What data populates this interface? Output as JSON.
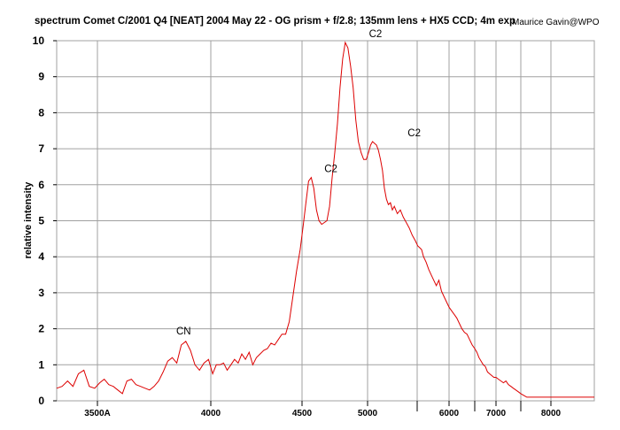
{
  "chart_data": {
    "type": "line",
    "title": "spectrum Comet C/2001 Q4 [NEAT] 2004 May 22 -  OG prism + f/2.8; 135mm lens + HX5 CCD; 4m exp",
    "credit": "Maurice Gavin@WPO",
    "ylabel": "relative intensity",
    "xlabel": "",
    "ylim": [
      0,
      10
    ],
    "yticks": [
      0,
      1,
      2,
      3,
      4,
      5,
      6,
      7,
      8,
      9,
      10
    ],
    "grid": true,
    "x_scale": "prism-dispersion",
    "x_ticks": [
      {
        "value": 3500,
        "label": "3500A"
      },
      {
        "value": 4000,
        "label": "4000"
      },
      {
        "value": 4500,
        "label": "4500"
      },
      {
        "value": 5000,
        "label": "5000"
      },
      {
        "value": 6000,
        "label": "6000"
      },
      {
        "value": 7000,
        "label": "7000"
      },
      {
        "value": 8000,
        "label": "8000"
      }
    ],
    "x_minor_ticks": [
      5500,
      6500,
      7500
    ],
    "xlim": [
      3350,
      9000
    ],
    "annotations": [
      {
        "text": "CN",
        "x": 3880,
        "y": 1.7
      },
      {
        "text": "C2",
        "x": 4720,
        "y": 6.2
      },
      {
        "text": "C2",
        "x": 5080,
        "y": 9.95
      },
      {
        "text": "C2",
        "x": 5470,
        "y": 7.2
      }
    ],
    "series": [
      {
        "color": "#dd0000",
        "x": [
          3350,
          3370,
          3390,
          3410,
          3430,
          3450,
          3470,
          3490,
          3510,
          3530,
          3550,
          3570,
          3590,
          3610,
          3630,
          3650,
          3670,
          3690,
          3710,
          3730,
          3750,
          3770,
          3790,
          3810,
          3830,
          3850,
          3870,
          3890,
          3910,
          3930,
          3950,
          3970,
          3990,
          4010,
          4030,
          4050,
          4070,
          4090,
          4110,
          4130,
          4150,
          4170,
          4190,
          4210,
          4230,
          4250,
          4270,
          4290,
          4310,
          4330,
          4350,
          4370,
          4390,
          4410,
          4430,
          4450,
          4470,
          4490,
          4510,
          4530,
          4550,
          4570,
          4590,
          4610,
          4630,
          4650,
          4670,
          4690,
          4710,
          4730,
          4750,
          4770,
          4790,
          4810,
          4830,
          4850,
          4870,
          4890,
          4910,
          4930,
          4950,
          4970,
          4990,
          5010,
          5030,
          5050,
          5070,
          5090,
          5110,
          5130,
          5150,
          5170,
          5190,
          5210,
          5230,
          5250,
          5270,
          5300,
          5330,
          5360,
          5390,
          5420,
          5450,
          5480,
          5510,
          5540,
          5570,
          5600,
          5640,
          5680,
          5720,
          5760,
          5800,
          5840,
          5880,
          5920,
          5960,
          6000,
          6050,
          6100,
          6150,
          6200,
          6250,
          6300,
          6350,
          6400,
          6450,
          6500,
          6550,
          6600,
          6650,
          6700,
          6750,
          6800,
          6850,
          6900,
          6950,
          7000,
          7050,
          7100,
          7150,
          7200,
          7250,
          7300,
          7350,
          7400,
          7450,
          7500,
          7550,
          7600,
          7650,
          7700,
          7750,
          7800,
          7850,
          7900,
          7950,
          8000,
          8050,
          8100,
          8150,
          8200,
          8250,
          8300,
          8350,
          8400,
          8450,
          8500,
          8550,
          8600,
          8650,
          8700,
          8750,
          8800,
          8850,
          8900,
          8950,
          9000
        ],
        "values": [
          0.35,
          0.4,
          0.55,
          0.4,
          0.75,
          0.85,
          0.4,
          0.35,
          0.5,
          0.6,
          0.45,
          0.4,
          0.3,
          0.2,
          0.55,
          0.6,
          0.45,
          0.4,
          0.35,
          0.3,
          0.4,
          0.55,
          0.8,
          1.1,
          1.2,
          1.05,
          1.55,
          1.65,
          1.4,
          1.0,
          0.85,
          1.05,
          1.15,
          0.75,
          1.0,
          1.0,
          1.05,
          0.85,
          1.0,
          1.15,
          1.05,
          1.3,
          1.15,
          1.35,
          1.0,
          1.2,
          1.3,
          1.4,
          1.45,
          1.6,
          1.55,
          1.7,
          1.85,
          1.85,
          2.2,
          2.9,
          3.6,
          4.2,
          4.9,
          5.5,
          6.1,
          6.2,
          5.9,
          5.3,
          5.0,
          4.9,
          4.95,
          5.0,
          5.4,
          6.2,
          6.9,
          7.7,
          8.7,
          9.5,
          9.95,
          9.8,
          9.3,
          8.7,
          7.8,
          7.2,
          6.9,
          6.7,
          6.7,
          6.9,
          7.1,
          7.2,
          7.15,
          7.1,
          6.95,
          6.7,
          6.4,
          5.9,
          5.6,
          5.45,
          5.5,
          5.3,
          5.4,
          5.2,
          5.3,
          5.1,
          4.95,
          4.8,
          4.6,
          4.45,
          4.3,
          4.25,
          4.2,
          4.0,
          3.85,
          3.65,
          3.5,
          3.35,
          3.2,
          3.35,
          3.05,
          2.9,
          2.75,
          2.6,
          2.5,
          2.4,
          2.3,
          2.15,
          2.0,
          1.9,
          1.85,
          1.7,
          1.55,
          1.45,
          1.35,
          1.2,
          1.1,
          1.0,
          0.95,
          0.8,
          0.75,
          0.7,
          0.65,
          0.65,
          0.6,
          0.55,
          0.5,
          0.55,
          0.45,
          0.4,
          0.35,
          0.3,
          0.25,
          0.2,
          0.15,
          0.1,
          0.1,
          0.1,
          0.1,
          0.1,
          0.1,
          0.1,
          0.1,
          0.1,
          0.1,
          0.1,
          0.1,
          0.1,
          0.1,
          0.1,
          0.1,
          0.1,
          0.1,
          0.1,
          0.1,
          0.1,
          0.1,
          0.1,
          0.1,
          0.1,
          0.1,
          0.1,
          0.1,
          0.1
        ]
      }
    ]
  }
}
